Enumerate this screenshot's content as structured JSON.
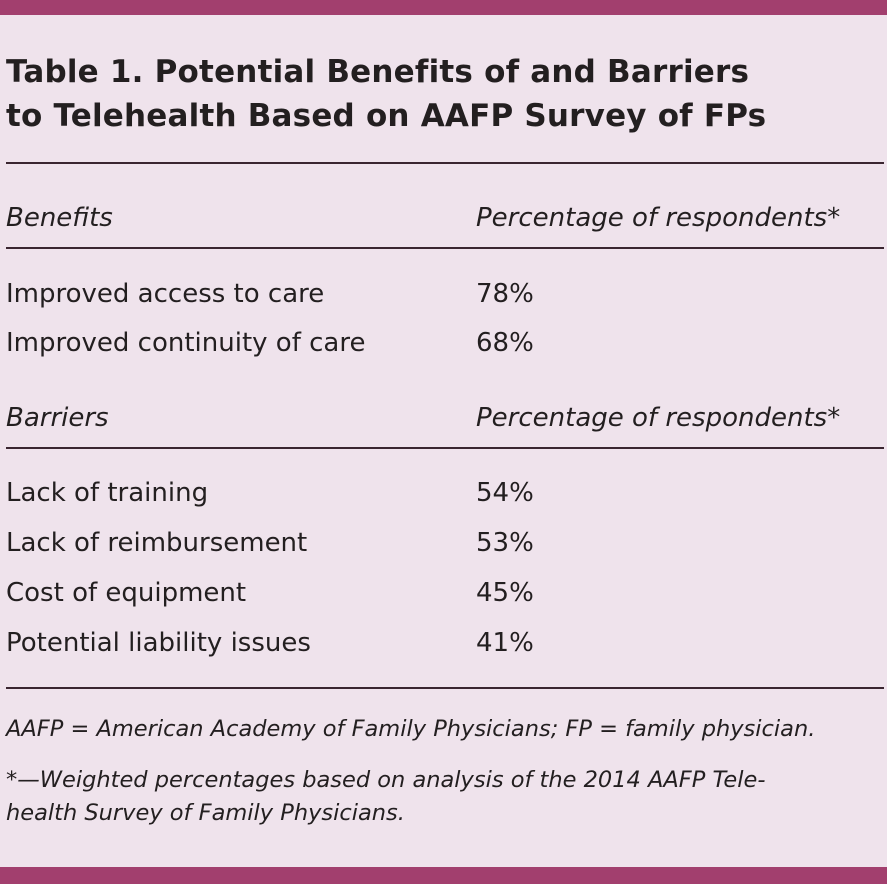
{
  "title_line1": "Table 1. Potential Benefits of and Barriers",
  "title_line2": "to Telehealth Based on AAFP Survey of FPs",
  "benefits": {
    "header": [
      "Benefits",
      "Percentage of respondents*"
    ],
    "rows": [
      [
        "Improved access to care",
        "78%"
      ],
      [
        "Improved continuity of care",
        "68%"
      ]
    ]
  },
  "barriers": {
    "header": [
      "Barriers",
      "Percentage of respondents*"
    ],
    "rows": [
      [
        "Lack of training",
        "54%"
      ],
      [
        "Lack of reimbursement",
        "53%"
      ],
      [
        "Cost of equipment",
        "45%"
      ],
      [
        "Potential liability issues",
        "41%"
      ]
    ]
  },
  "footnotes": {
    "abbrev": "AAFP = American Academy of Family Physicians; FP = family physician.",
    "note_line1": "*—Weighted percentages based on analysis of the 2014 AAFP Tele-",
    "note_line2": "health Survey of Family Physicians."
  }
}
